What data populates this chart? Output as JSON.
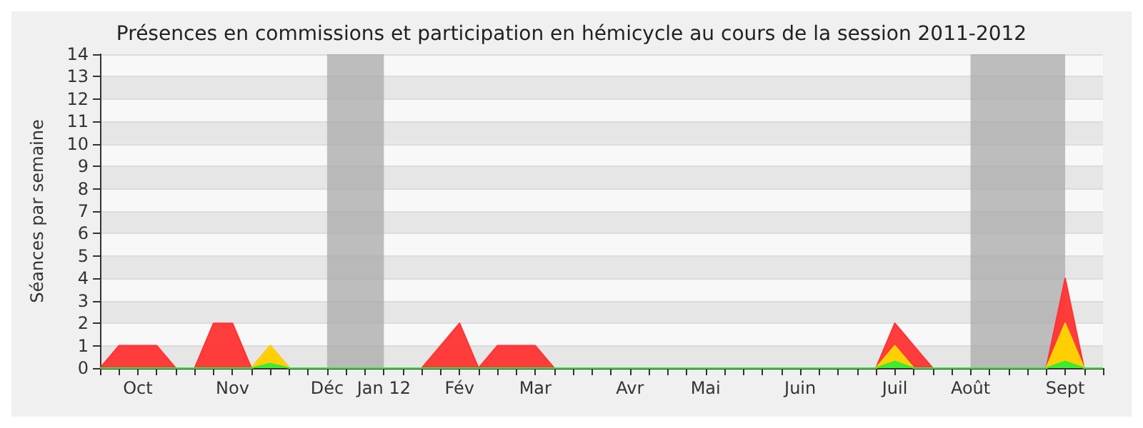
{
  "chart_data": {
    "type": "area",
    "title": "Présences en commissions et participation en hémicycle au cours de la session 2011-2012",
    "ylabel": "Séances par semaine",
    "categories": [
      null,
      null,
      "Oct",
      null,
      null,
      null,
      null,
      "Nov",
      null,
      null,
      null,
      null,
      "Déc",
      null,
      null,
      "Jan 12",
      null,
      null,
      null,
      "Fév",
      null,
      null,
      null,
      "Mar",
      null,
      null,
      null,
      null,
      "Avr",
      null,
      null,
      null,
      "Mai",
      null,
      null,
      null,
      null,
      "Juin",
      null,
      null,
      null,
      null,
      "Juil",
      null,
      null,
      null,
      "Août",
      null,
      null,
      null,
      null,
      "Sept",
      null,
      null
    ],
    "series": [
      {
        "color": "#ff3333",
        "values": [
          0,
          1,
          1,
          1,
          0,
          0,
          2,
          2,
          0,
          1,
          0,
          0,
          0,
          0,
          0,
          0,
          0,
          0,
          1,
          2,
          0,
          1,
          1,
          1,
          0,
          0,
          0,
          0,
          0,
          0,
          0,
          0,
          0,
          0,
          0,
          0,
          0,
          0,
          0,
          0,
          0,
          0,
          2,
          1,
          0,
          0,
          0,
          0,
          0,
          0,
          0,
          4,
          0,
          0
        ]
      },
      {
        "color": "#ffd700",
        "values": [
          0,
          0,
          0,
          0,
          0,
          0,
          0,
          0,
          0,
          1,
          0,
          0,
          0,
          0,
          0,
          0,
          0,
          0,
          0,
          0,
          0,
          0,
          0,
          0,
          0,
          0,
          0,
          0,
          0,
          0,
          0,
          0,
          0,
          0,
          0,
          0,
          0,
          0,
          0,
          0,
          0,
          0,
          1,
          0,
          0,
          0,
          0,
          0,
          0,
          0,
          0,
          2,
          0,
          0
        ]
      },
      {
        "color": "#33ee33",
        "values": [
          0,
          0,
          0,
          0,
          0,
          0,
          0,
          0,
          0,
          0.2,
          0,
          0,
          0,
          0,
          0,
          0,
          0,
          0,
          0,
          0,
          0,
          0,
          0,
          0,
          0,
          0,
          0,
          0,
          0,
          0,
          0,
          0,
          0,
          0,
          0,
          0,
          0,
          0,
          0,
          0,
          0,
          0,
          0.3,
          0,
          0,
          0,
          0,
          0,
          0,
          0,
          0,
          0.3,
          0,
          0
        ]
      }
    ],
    "bands": [
      {
        "axis": "x",
        "from": "Déc",
        "to": "Jan 12",
        "color": "#aaaaaa"
      },
      {
        "axis": "x",
        "from": "Août",
        "to": "Sept",
        "color": "#aaaaaa"
      }
    ],
    "ylim": [
      0,
      14
    ],
    "yticks": [
      0,
      1,
      2,
      3,
      4,
      5,
      6,
      7,
      8,
      9,
      10,
      11,
      12,
      13,
      14
    ],
    "grid": "y"
  }
}
